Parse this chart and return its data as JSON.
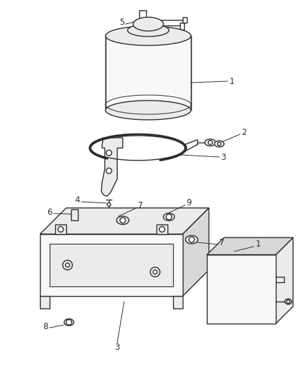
{
  "bg_color": "#ffffff",
  "line_color": "#2a2a2a",
  "label_color": "#2a2a2a",
  "fill_light": "#f8f8f8",
  "fill_mid": "#ebebeb",
  "fill_dark": "#d8d8d8",
  "lw": 1.0,
  "label_fs": 8.5,
  "figsize": [
    4.38,
    5.33
  ],
  "dpi": 100
}
